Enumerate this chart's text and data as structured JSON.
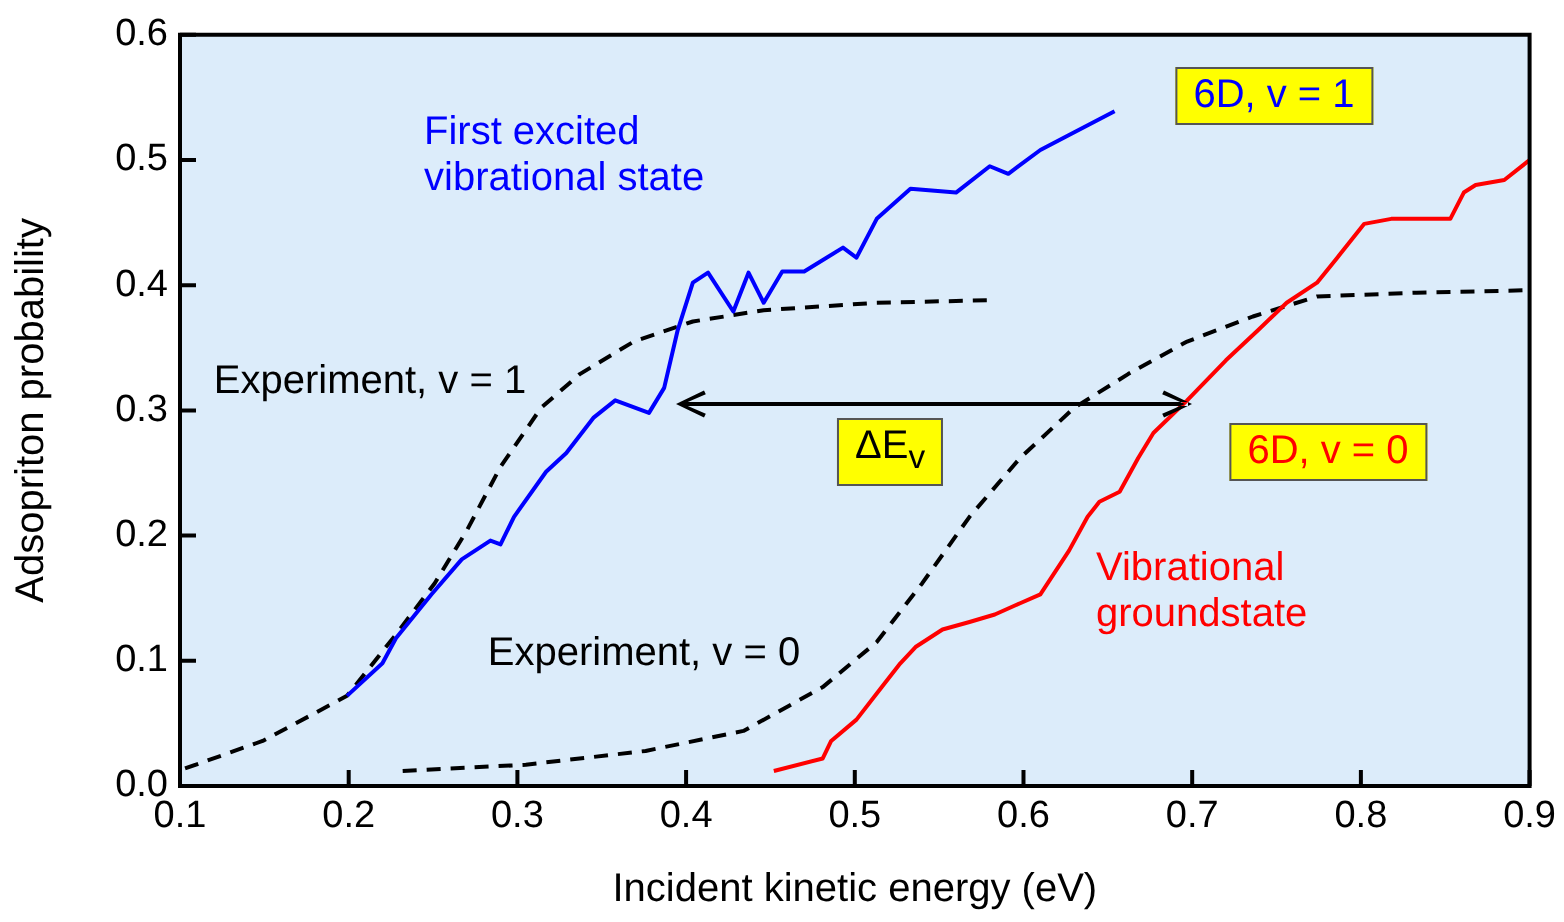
{
  "chart_data": {
    "type": "line",
    "xlabel": "Incident kinetic energy (eV)",
    "ylabel": "Adsopriton probability",
    "xlim": [
      0.1,
      0.9
    ],
    "xticks": [
      0.1,
      0.2,
      0.3,
      0.4,
      0.5,
      0.6,
      0.7,
      0.8,
      0.9
    ],
    "ylim": [
      0,
      0.6
    ],
    "yticks": [
      {
        "value": 0,
        "label": "0.0"
      },
      0.1,
      0.2,
      0.3,
      0.4,
      0.5,
      0.6
    ],
    "series": [
      {
        "color": "#0000ff",
        "x": [
          0.199,
          0.22,
          0.228,
          0.249,
          0.267,
          0.284,
          0.29,
          0.298,
          0.317,
          0.329,
          0.345,
          0.358,
          0.378,
          0.387,
          0.395,
          0.404,
          0.413,
          0.428,
          0.437,
          0.446,
          0.457,
          0.47,
          0.493,
          0.501,
          0.513,
          0.533,
          0.56,
          0.58,
          0.591,
          0.61,
          0.627,
          0.654
        ],
        "values": [
          0.072,
          0.098,
          0.118,
          0.153,
          0.181,
          0.196,
          0.193,
          0.215,
          0.251,
          0.266,
          0.294,
          0.308,
          0.298,
          0.318,
          0.364,
          0.402,
          0.41,
          0.379,
          0.41,
          0.386,
          0.411,
          0.411,
          0.43,
          0.422,
          0.453,
          0.477,
          0.474,
          0.495,
          0.489,
          0.508,
          0.52,
          0.539
        ]
      },
      {
        "color": "#ff0000",
        "x": [
          0.452,
          0.481,
          0.486,
          0.501,
          0.516,
          0.527,
          0.536,
          0.552,
          0.568,
          0.583,
          0.598,
          0.61,
          0.627,
          0.638,
          0.645,
          0.657,
          0.668,
          0.677,
          0.697,
          0.72,
          0.739,
          0.756,
          0.774,
          0.786,
          0.802,
          0.818,
          0.853,
          0.861,
          0.868,
          0.885,
          0.9
        ],
        "values": [
          0.012,
          0.022,
          0.036,
          0.053,
          0.079,
          0.098,
          0.111,
          0.125,
          0.131,
          0.137,
          0.146,
          0.153,
          0.188,
          0.215,
          0.227,
          0.235,
          0.262,
          0.282,
          0.308,
          0.34,
          0.364,
          0.386,
          0.402,
          0.422,
          0.449,
          0.453,
          0.453,
          0.474,
          0.48,
          0.484,
          0.5
        ]
      },
      {
        "color": "#000000",
        "line_style": "dashed",
        "x": [
          0.103,
          0.149,
          0.181,
          0.199,
          0.228,
          0.251,
          0.27,
          0.29,
          0.314,
          0.337,
          0.369,
          0.404,
          0.446,
          0.513,
          0.58
        ],
        "values": [
          0.014,
          0.036,
          0.059,
          0.072,
          0.121,
          0.162,
          0.204,
          0.255,
          0.302,
          0.329,
          0.355,
          0.371,
          0.38,
          0.386,
          0.388
        ]
      },
      {
        "color": "#000000",
        "line_style": "dashed",
        "x": [
          0.232,
          0.305,
          0.376,
          0.434,
          0.481,
          0.513,
          0.54,
          0.568,
          0.598,
          0.63,
          0.662,
          0.697,
          0.736,
          0.774,
          0.833,
          0.9
        ],
        "values": [
          0.012,
          0.017,
          0.028,
          0.044,
          0.079,
          0.115,
          0.162,
          0.215,
          0.262,
          0.302,
          0.329,
          0.355,
          0.375,
          0.391,
          0.394,
          0.396
        ]
      }
    ],
    "annotations": [
      "First excited vibrational state",
      "6D, v = 1",
      "Experiment, v = 1",
      "Experiment, v = 0",
      "6D, v = 0",
      "Vibrational groundstate",
      "ΔE$_{v}$"
    ]
  }
}
